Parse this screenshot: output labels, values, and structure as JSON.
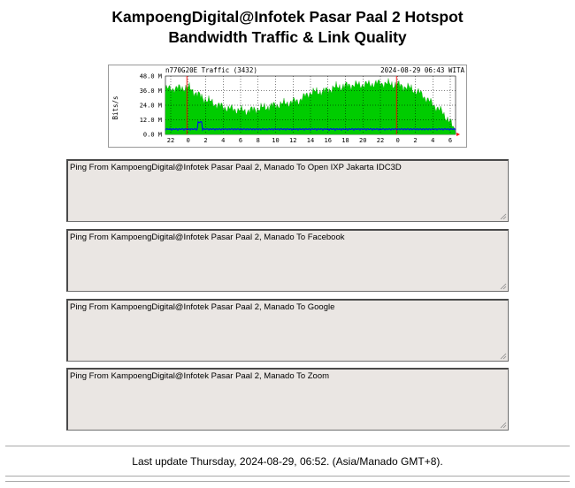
{
  "page": {
    "title_line1": "KampoengDigital@Infotek Pasar Paal 2 Hotspot",
    "title_line2": "Bandwidth Traffic & Link Quality"
  },
  "graph": {
    "header_left": "n770G20E Traffic (3432)",
    "header_right": "2024-08-29 06:43 WITA",
    "ylabel": "Bits/s",
    "y_ticks": [
      "48.0 M",
      "36.0 M",
      "24.0 M",
      "12.0 M",
      "0.0 M"
    ],
    "x_ticks": [
      "22",
      "0",
      "2",
      "4",
      "6",
      "8",
      "10",
      "12",
      "14",
      "16",
      "18",
      "20",
      "22",
      "0",
      "2",
      "4",
      "6"
    ],
    "colors": {
      "inbound": "#00cc00",
      "outbound": "#0000ff",
      "midnight": "#ff0000"
    }
  },
  "ping_boxes": [
    {
      "label": "Ping From KampoengDigital@Infotek Pasar Paal 2, Manado To Open IXP Jakarta IDC3D"
    },
    {
      "label": "Ping From KampoengDigital@Infotek Pasar Paal 2, Manado To Facebook"
    },
    {
      "label": "Ping From KampoengDigital@Infotek Pasar Paal 2, Manado To Google"
    },
    {
      "label": "Ping From KampoengDigital@Infotek Pasar Paal 2, Manado To Zoom"
    }
  ],
  "footer": {
    "last_update": "Last update Thursday, 2024-08-29, 06:52. (Asia/Manado GMT+8)."
  }
}
